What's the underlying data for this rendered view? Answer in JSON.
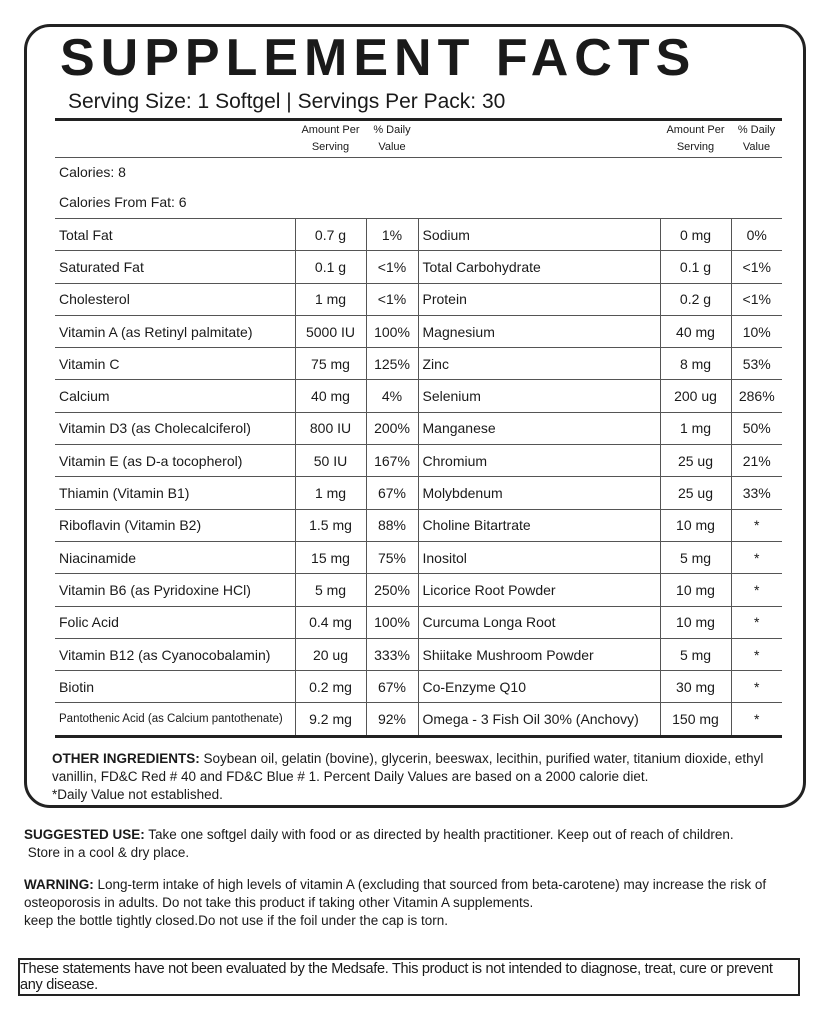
{
  "title": "SUPPLEMENT FACTS",
  "serving": "Serving Size: 1 Softgel | Servings Per Pack: 30",
  "headers": {
    "amount": "Amount Per Serving",
    "dv": "% Daily Value"
  },
  "calories": "Calories: 8",
  "calories_from_fat": "Calories From Fat: 6",
  "rows": [
    [
      "Total Fat",
      "0.7 g",
      "1%",
      "Sodium",
      "0 mg",
      "0%"
    ],
    [
      "Saturated Fat",
      "0.1 g",
      "<1%",
      "Total Carbohydrate",
      "0.1 g",
      "<1%"
    ],
    [
      "Cholesterol",
      "1 mg",
      "<1%",
      "Protein",
      "0.2 g",
      "<1%"
    ],
    [
      "Vitamin A (as Retinyl palmitate)",
      "5000 IU",
      "100%",
      "Magnesium",
      "40 mg",
      "10%"
    ],
    [
      "Vitamin C",
      "75 mg",
      "125%",
      "Zinc",
      "8 mg",
      "53%"
    ],
    [
      "Calcium",
      "40 mg",
      "4%",
      "Selenium",
      "200 ug",
      "286%"
    ],
    [
      "Vitamin D3 (as Cholecalciferol)",
      "800 IU",
      "200%",
      "Manganese",
      "1 mg",
      "50%"
    ],
    [
      "Vitamin E (as D-a tocopherol)",
      "50 IU",
      "167%",
      "Chromium",
      "25 ug",
      "21%"
    ],
    [
      "Thiamin (Vitamin B1)",
      "1 mg",
      "67%",
      "Molybdenum",
      "25 ug",
      "33%"
    ],
    [
      "Riboflavin (Vitamin B2)",
      "1.5 mg",
      "88%",
      "Choline Bitartrate",
      "10 mg",
      "*"
    ],
    [
      "Niacinamide",
      "15 mg",
      "75%",
      "Inositol",
      "5 mg",
      "*"
    ],
    [
      "Vitamin B6 (as Pyridoxine HCl)",
      "5 mg",
      "250%",
      "Licorice Root Powder",
      "10 mg",
      "*"
    ],
    [
      "Folic Acid",
      "0.4 mg",
      "100%",
      "Curcuma Longa Root",
      "10 mg",
      "*"
    ],
    [
      "Vitamin B12 (as Cyanocobalamin)",
      "20 ug",
      "333%",
      "Shiitake Mushroom Powder",
      "5 mg",
      "*"
    ],
    [
      "Biotin",
      "0.2 mg",
      "67%",
      "Co-Enzyme Q10",
      "30 mg",
      "*"
    ],
    [
      "Pantothenic Acid (as Calcium pantothenate)",
      "9.2 mg",
      "92%",
      "Omega - 3 Fish Oil 30% (Anchovy)",
      "150 mg",
      "*"
    ]
  ],
  "other_ingredients": {
    "label": "OTHER INGREDIENTS:",
    "text": "Soybean oil, gelatin (bovine), glycerin, beeswax, lecithin, purified water, titanium dioxide, ethyl vanillin, FD&C Red # 40 and FD&C Blue # 1. Percent Daily Values are based on a 2000 calorie diet."
  },
  "note": "*Daily Value not established.",
  "suggested_use": {
    "label": "SUGGESTED USE:",
    "text": "Take one softgel daily with food or as directed by health practitioner. Keep out of reach of children.",
    "line2": "Store in a cool & dry place."
  },
  "warning": {
    "label": "WARNING:",
    "text": "Long-term intake of high levels of vitamin A (excluding that sourced from beta-carotene) may increase the risk of osteoporosis in adults. Do not take this product if taking other Vitamin A supplements.",
    "line2": "keep the bottle tightly closed.Do not use if the foil under the cap is torn."
  },
  "disclaimer": "These statements have not been evaluated by the Medsafe. This product is not intended to diagnose, treat, cure or prevent any disease."
}
